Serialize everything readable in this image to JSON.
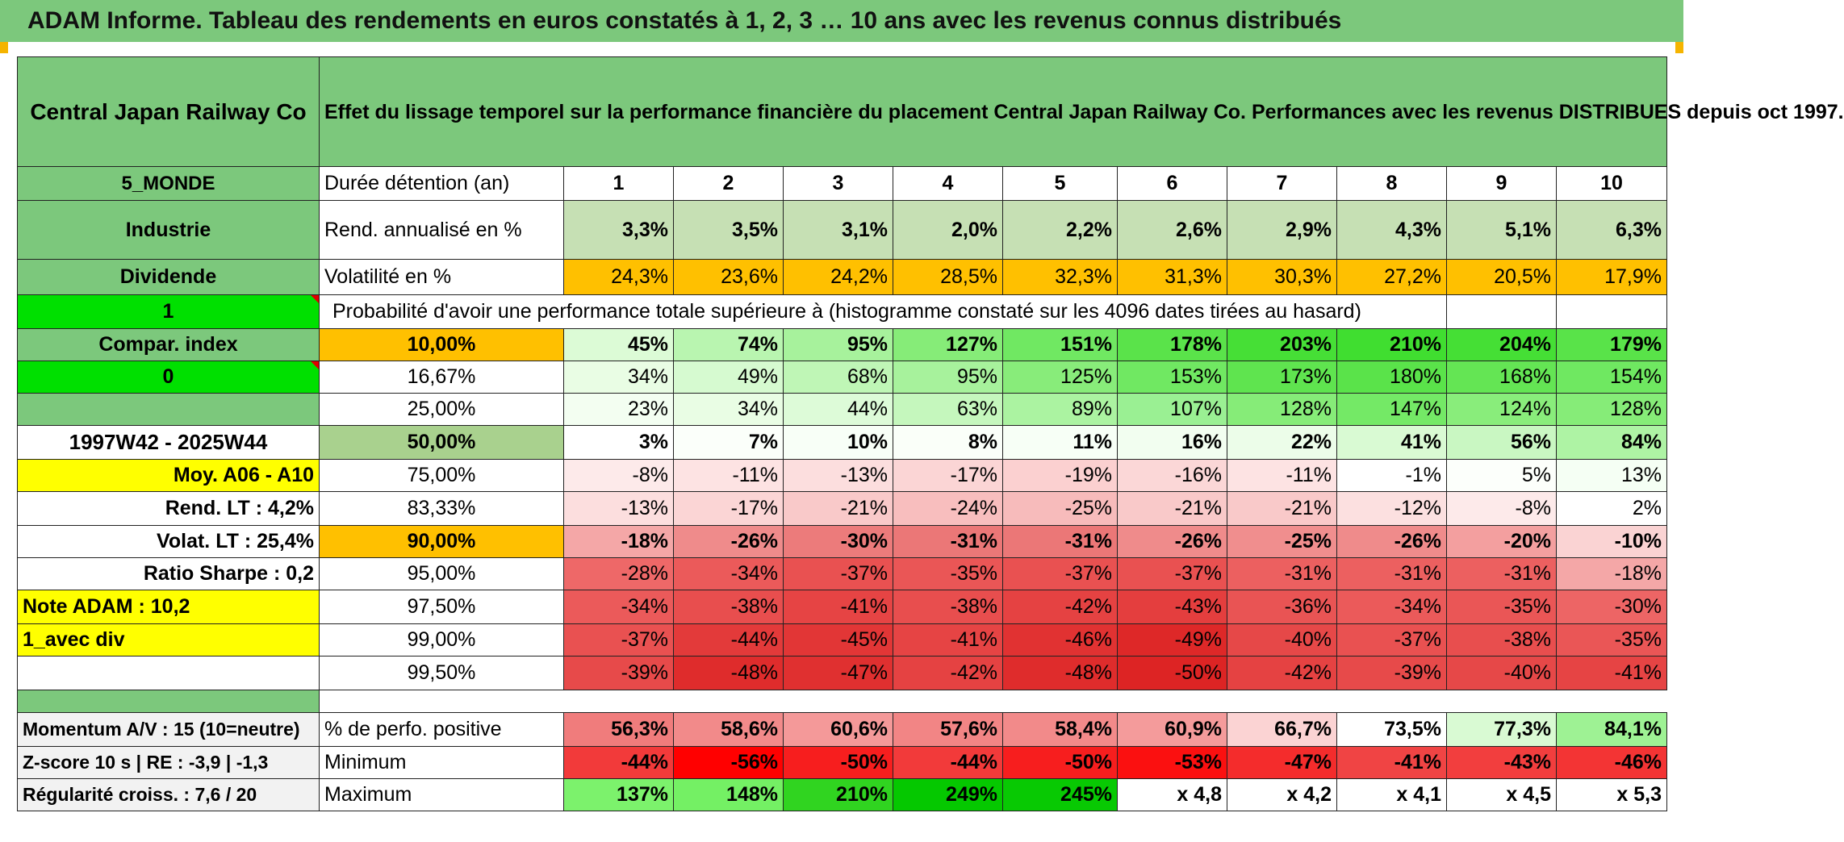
{
  "title": "ADAM Informe. Tableau des rendements en euros constatés à 1, 2, 3 … 10 ans avec les revenus connus distribués",
  "header": {
    "company": "Central Japan Railway Co",
    "description": "Effet du lissage temporel sur la performance financière du placement Central Japan Railway Co. Performances avec les revenus DISTRIBUES depuis oct 1997."
  },
  "left": {
    "zone": "5_MONDE",
    "sector": "Industrie",
    "dividend": "Dividende",
    "one": "1",
    "compar": "Compar. index",
    "zero": "0",
    "period": "1997W42 - 2025W44",
    "moy": "Moy. A06 - A10",
    "rend_lt": "Rend. LT :   4,2%",
    "volat_lt": "Volat. LT :   25,4%",
    "sharpe": "Ratio Sharpe :    0,2",
    "note": "Note ADAM : 10,2",
    "avec_div": "1_avec div",
    "momentum": "Momentum A/V : 15 (10=neutre)",
    "zscore": "Z-score 10 s | RE : -3,9 | -1,3",
    "regularite": "Régularité croiss. : 7,6 / 20"
  },
  "rows": {
    "duree_label": "Durée détention (an)",
    "years": [
      "1",
      "2",
      "3",
      "4",
      "5",
      "6",
      "7",
      "8",
      "9",
      "10"
    ],
    "rend_label": "Rend. annualisé en %",
    "rend": [
      "3,3%",
      "3,5%",
      "3,1%",
      "2,0%",
      "2,2%",
      "2,6%",
      "2,9%",
      "4,3%",
      "5,1%",
      "6,3%"
    ],
    "vol_label": "Volatilité en %",
    "vol": [
      "24,3%",
      "23,6%",
      "24,2%",
      "28,5%",
      "32,3%",
      "31,3%",
      "30,3%",
      "27,2%",
      "20,5%",
      "17,9%"
    ],
    "proba_text": "Probabilité d'avoir une performance totale supérieure à (histogramme constaté sur les 4096 dates tirées au hasard)"
  },
  "quantiles": [
    {
      "label": "10,00%",
      "values": [
        "45%",
        "74%",
        "95%",
        "127%",
        "151%",
        "178%",
        "203%",
        "210%",
        "204%",
        "179%"
      ],
      "colors": [
        "#dcfbd6",
        "#b9f5b0",
        "#a7f29c",
        "#86ec78",
        "#70e862",
        "#5ae34a",
        "#46df36",
        "#40de30",
        "#45df35",
        "#59e349"
      ]
    },
    {
      "label": "16,67%",
      "values": [
        "34%",
        "49%",
        "68%",
        "95%",
        "125%",
        "153%",
        "173%",
        "180%",
        "168%",
        "154%"
      ],
      "colors": [
        "#e9fde4",
        "#d6fad0",
        "#bff6b6",
        "#a7f29c",
        "#88ec7a",
        "#70e862",
        "#5fe44f",
        "#5ae34a",
        "#64e554",
        "#6fe861"
      ]
    },
    {
      "label": "25,00%",
      "values": [
        "23%",
        "34%",
        "44%",
        "63%",
        "89%",
        "107%",
        "128%",
        "147%",
        "124%",
        "128%"
      ],
      "colors": [
        "#f3fef1",
        "#e9fde4",
        "#ddfbd8",
        "#c5f7bd",
        "#abf3a1",
        "#9af093",
        "#86ec78",
        "#74e966",
        "#89ed7b",
        "#86ec78"
      ]
    },
    {
      "label": "50,00%",
      "values": [
        "3%",
        "7%",
        "10%",
        "8%",
        "11%",
        "16%",
        "22%",
        "41%",
        "56%",
        "84%"
      ],
      "colors": [
        "#ffffff",
        "#fbfffa",
        "#f8fff7",
        "#fafff9",
        "#f7fff6",
        "#f2fef0",
        "#ecfde9",
        "#d9fad3",
        "#c9f7c2",
        "#aef3a4"
      ]
    },
    {
      "label": "75,00%",
      "values": [
        "-8%",
        "-11%",
        "-13%",
        "-17%",
        "-19%",
        "-16%",
        "-11%",
        "-1%",
        "5%",
        "13%"
      ],
      "colors": [
        "#fdeaea",
        "#fde3e3",
        "#fcdede",
        "#fbd5d5",
        "#fbd0d0",
        "#fbd7d7",
        "#fde3e3",
        "#ffffff",
        "#fcfffb",
        "#f5fff4"
      ]
    },
    {
      "label": "83,33%",
      "values": [
        "-13%",
        "-17%",
        "-21%",
        "-24%",
        "-25%",
        "-21%",
        "-21%",
        "-12%",
        "-8%",
        "2%"
      ],
      "colors": [
        "#fcdede",
        "#fbd5d5",
        "#f9c9c9",
        "#f8bebe",
        "#f7bbbb",
        "#f9c9c9",
        "#f9c9c9",
        "#fce0e0",
        "#fdeaea",
        "#ffffff"
      ]
    },
    {
      "label": "90,00%",
      "values": [
        "-18%",
        "-26%",
        "-30%",
        "-31%",
        "-31%",
        "-26%",
        "-25%",
        "-26%",
        "-20%",
        "-10%"
      ],
      "colors": [
        "#f4a7a7",
        "#ef8b8b",
        "#ec7b7b",
        "#eb7777",
        "#eb7777",
        "#ef8b8b",
        "#f08e8e",
        "#ef8b8b",
        "#f39f9f",
        "#fad3d3"
      ]
    },
    {
      "label": "95,00%",
      "values": [
        "-28%",
        "-34%",
        "-37%",
        "-35%",
        "-37%",
        "-37%",
        "-31%",
        "-31%",
        "-31%",
        "-18%"
      ],
      "colors": [
        "#ee6868",
        "#eb5a5a",
        "#e95151",
        "#ea5656",
        "#e95151",
        "#e95151",
        "#ec6060",
        "#ec6060",
        "#ec6060",
        "#f4a7a7"
      ]
    },
    {
      "label": "97,50%",
      "values": [
        "-34%",
        "-38%",
        "-41%",
        "-38%",
        "-42%",
        "-43%",
        "-36%",
        "-34%",
        "-35%",
        "-30%"
      ],
      "colors": [
        "#eb5a5a",
        "#e84e4e",
        "#e64444",
        "#e84e4e",
        "#e54242",
        "#e43e3e",
        "#e95454",
        "#eb5a5a",
        "#ea5656",
        "#ed6565"
      ]
    },
    {
      "label": "99,00%",
      "values": [
        "-37%",
        "-44%",
        "-45%",
        "-41%",
        "-46%",
        "-49%",
        "-40%",
        "-37%",
        "-38%",
        "-35%"
      ],
      "colors": [
        "#e95151",
        "#e33a3a",
        "#e23636",
        "#e64444",
        "#e13232",
        "#de2828",
        "#e64848",
        "#e95151",
        "#e84e4e",
        "#ea5656"
      ]
    },
    {
      "label": "99,50%",
      "values": [
        "-39%",
        "-48%",
        "-47%",
        "-42%",
        "-48%",
        "-50%",
        "-42%",
        "-39%",
        "-40%",
        "-41%"
      ],
      "colors": [
        "#e74a4a",
        "#df2c2c",
        "#e03030",
        "#e54242",
        "#df2c2c",
        "#dd2424",
        "#e54242",
        "#e74a4a",
        "#e64848",
        "#e64444"
      ]
    }
  ],
  "bottom": {
    "pos_label": "% de perfo. positive",
    "pos": [
      "56,3%",
      "58,6%",
      "60,6%",
      "57,6%",
      "58,4%",
      "60,9%",
      "66,7%",
      "73,5%",
      "77,3%",
      "84,1%"
    ],
    "pos_colors": [
      "#f07c7c",
      "#f28a8a",
      "#f49999",
      "#f28585",
      "#f28a8a",
      "#f49b9b",
      "#fbd3d3",
      "#ffffff",
      "#d9fad3",
      "#9ef294"
    ],
    "min_label": "Minimum",
    "min": [
      "-44%",
      "-56%",
      "-50%",
      "-44%",
      "-50%",
      "-53%",
      "-47%",
      "-41%",
      "-43%",
      "-46%"
    ],
    "min_colors": [
      "#f23a3a",
      "#ff0000",
      "#f71e1e",
      "#f23a3a",
      "#f71e1e",
      "#fb1010",
      "#f42c2c",
      "#f04444",
      "#f23e3e",
      "#f33434"
    ],
    "max_label": "Maximum",
    "max": [
      "137%",
      "148%",
      "210%",
      "249%",
      "245%",
      "x 4,8",
      "x 4,2",
      "x 4,1",
      "x 4,5",
      "x 5,3"
    ],
    "max_colors": [
      "#7cf26c",
      "#74f064",
      "#30d420",
      "#05c800",
      "#08c903",
      "#ffffff",
      "#ffffff",
      "#ffffff",
      "#ffffff",
      "#ffffff"
    ]
  }
}
